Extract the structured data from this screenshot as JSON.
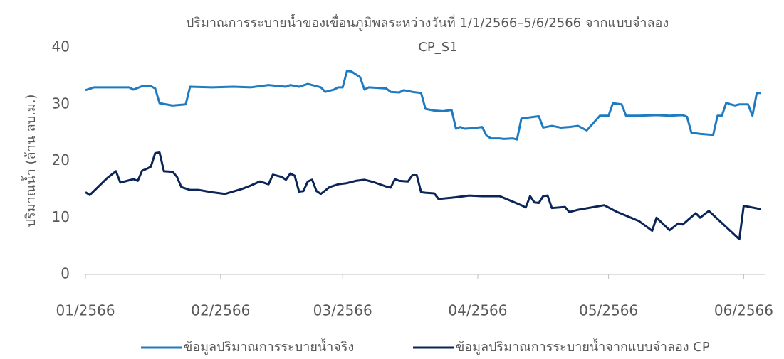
{
  "chart_data": {
    "type": "line",
    "title": [
      "ปริมาณการระบายน้ำของเขื่อนภูมิพลระหว่างวันที่ 1/1/2566–5/6/2566 จากแบบจำลอง",
      "CP_S1"
    ],
    "y_label": "ปริมาณน้ำ (ล้าน ลบ.ม.)",
    "xlim": [
      0,
      156
    ],
    "xticks": [
      {
        "value": 0,
        "label": "01/2566"
      },
      {
        "value": 31,
        "label": "02/2566"
      },
      {
        "value": 59,
        "label": "03/2566"
      },
      {
        "value": 90,
        "label": "04/2566"
      },
      {
        "value": 120,
        "label": "05/2566"
      },
      {
        "value": 151,
        "label": "06/2566"
      }
    ],
    "ylim": [
      0,
      40
    ],
    "yticks": [
      0,
      10,
      20,
      30,
      40
    ],
    "grid": false,
    "legend": "bottom",
    "series": [
      {
        "name": "ข้อมูลปริมาณการระบายน้ำจริง",
        "color": "#1f7bc1",
        "x": [
          0,
          2,
          10,
          11,
          13,
          15,
          16,
          17,
          20,
          23,
          24,
          29,
          34,
          38,
          42,
          46,
          47,
          49,
          51,
          54,
          55,
          57,
          58,
          59,
          60,
          61,
          63,
          64,
          65,
          69,
          70,
          72,
          73,
          75,
          77,
          78,
          80,
          82,
          84,
          85,
          86,
          87,
          89,
          91,
          92,
          93,
          95,
          96,
          98,
          99,
          100,
          103,
          104,
          105,
          107,
          109,
          111,
          113,
          115,
          118,
          120,
          121,
          123,
          124,
          127,
          131,
          134,
          137,
          138,
          139,
          141,
          144,
          145,
          146,
          147,
          148,
          149,
          150,
          152,
          153,
          154,
          155
        ],
        "values": [
          32.5,
          33,
          33,
          32.6,
          33.2,
          33.2,
          32.8,
          30.2,
          29.8,
          30,
          33.1,
          33,
          33.1,
          33,
          33.4,
          33.1,
          33.4,
          33.1,
          33.6,
          33,
          32.2,
          32.6,
          33,
          33,
          35.9,
          35.8,
          34.8,
          32.6,
          33,
          32.8,
          32.2,
          32.1,
          32.5,
          32.2,
          32,
          29.2,
          28.9,
          28.8,
          29,
          25.7,
          26,
          25.7,
          25.8,
          26,
          24.5,
          24,
          24,
          23.9,
          24,
          23.8,
          27.5,
          27.8,
          27.9,
          25.9,
          26.2,
          25.9,
          26,
          26.2,
          25.4,
          28,
          28,
          30.2,
          30,
          28,
          28,
          28.1,
          28,
          28.1,
          27.8,
          25,
          24.8,
          24.6,
          28,
          28,
          30.3,
          30,
          29.8,
          30,
          30,
          28,
          32,
          32
        ]
      },
      {
        "name": "ข้อมูลปริมาณการระบายน้ำจากแบบจำลอง CP",
        "color": "#0b2559",
        "x": [
          0,
          1,
          5,
          7,
          8,
          10,
          11,
          12,
          13,
          14,
          15,
          16,
          17,
          18,
          20,
          21,
          22,
          24,
          26,
          29,
          32,
          36,
          38,
          40,
          42,
          43,
          45,
          46,
          47,
          48,
          49,
          50,
          51,
          52,
          53,
          54,
          56,
          58,
          60,
          62,
          64,
          66,
          69,
          70,
          71,
          72,
          74,
          75,
          76,
          77,
          78,
          80,
          81,
          85,
          88,
          91,
          95,
          100,
          101,
          102,
          103,
          104,
          105,
          106,
          107,
          110,
          111,
          113,
          119,
          122,
          127,
          130,
          131,
          134,
          136,
          137,
          140,
          141,
          143,
          150,
          151,
          155
        ],
        "values": [
          14.5,
          14,
          17,
          18.2,
          16.2,
          16.6,
          16.8,
          16.5,
          18.3,
          18.6,
          19,
          21.4,
          21.5,
          18.2,
          18.1,
          17.2,
          15.4,
          14.9,
          14.9,
          14.5,
          14.2,
          15.1,
          15.7,
          16.4,
          15.9,
          17.6,
          17.2,
          16.7,
          17.8,
          17.4,
          14.6,
          14.7,
          16.4,
          16.7,
          14.7,
          14.2,
          15.4,
          15.9,
          16.1,
          16.5,
          16.7,
          16.3,
          15.5,
          15.3,
          16.8,
          16.5,
          16.4,
          17.5,
          17.5,
          14.5,
          14.4,
          14.3,
          13.3,
          13.6,
          13.9,
          13.8,
          13.8,
          12.2,
          11.8,
          13.8,
          12.7,
          12.6,
          13.8,
          13.9,
          11.7,
          11.9,
          11,
          11.4,
          12.2,
          11,
          9.4,
          7.7,
          10,
          7.8,
          9,
          8.8,
          10.8,
          10,
          11.2,
          6.2,
          12.1,
          11.5
        ]
      }
    ]
  }
}
